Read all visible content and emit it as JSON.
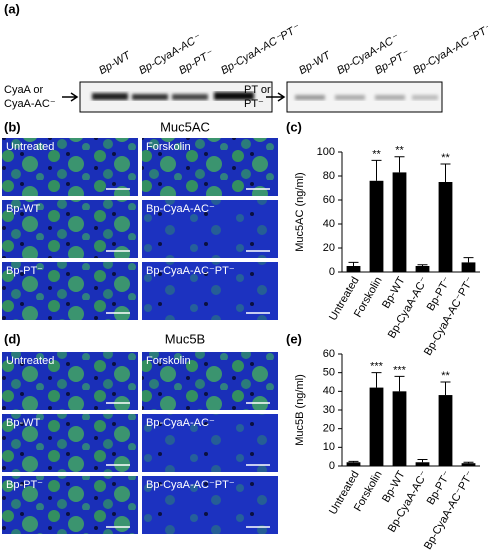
{
  "panels": {
    "a": {
      "label": "(a)",
      "blot_left": {
        "lanes": [
          "Bp-WT",
          "Bp-CyaA-AC⁻",
          "Bp-PT⁻",
          "Bp-CyaA-AC⁻PT⁻"
        ],
        "bands": [
          "CyaA or",
          "CyaA-AC⁻"
        ]
      },
      "blot_right": {
        "lanes": [
          "Bp-WT",
          "Bp-CyaA-AC⁻",
          "Bp-PT⁻",
          "Bp-CyaA-AC⁻PT⁻"
        ],
        "bands": [
          "PT or",
          "PT⁻"
        ]
      }
    },
    "b": {
      "label": "(b)",
      "title": "Muc5AC",
      "images": [
        "Untreated",
        "Forskolin",
        "Bp-WT",
        "Bp-CyaA-AC⁻",
        "Bp-PT⁻",
        "Bp-CyaA-AC⁻PT⁻"
      ]
    },
    "d": {
      "label": "(d)",
      "title": "Muc5B",
      "images": [
        "Untreated",
        "Forskolin",
        "Bp-WT",
        "Bp-CyaA-AC⁻",
        "Bp-PT⁻",
        "Bp-CyaA-AC⁻PT⁻"
      ]
    }
  },
  "chart_data": [
    {
      "type": "bar",
      "panel_label": "(c)",
      "y_label": "Muc5AC (ng/ml)",
      "categories": [
        "Untreated",
        "Forskolin",
        "Bp-WT",
        "Bp-CyaA-AC⁻",
        "Bp-PT⁻",
        "Bp-CyaA-AC⁻PT⁻"
      ],
      "values": [
        5,
        76,
        83,
        5,
        75,
        8
      ],
      "errors": [
        3,
        17,
        13,
        1,
        15,
        4
      ],
      "annotations": [
        null,
        "**",
        "**",
        null,
        "**",
        null
      ],
      "color": "#000000",
      "ylim": [
        0,
        100
      ],
      "yticks": [
        0,
        20,
        40,
        60,
        80,
        100
      ]
    },
    {
      "type": "bar",
      "panel_label": "(e)",
      "y_label": "Muc5B (ng/ml)",
      "categories": [
        "Untreated",
        "Forskolin",
        "Bp-WT",
        "Bp-CyaA-AC⁻",
        "Bp-PT⁻",
        "Bp-CyaA-AC⁻PT⁻"
      ],
      "values": [
        2,
        42,
        40,
        2,
        38,
        1.5
      ],
      "errors": [
        0.5,
        8,
        8,
        1.5,
        7,
        0.5
      ],
      "annotations": [
        null,
        "***",
        "***",
        null,
        "**",
        null
      ],
      "color": "#000000",
      "ylim": [
        0,
        60
      ],
      "yticks": [
        0,
        10,
        20,
        30,
        40,
        50,
        60
      ]
    }
  ]
}
